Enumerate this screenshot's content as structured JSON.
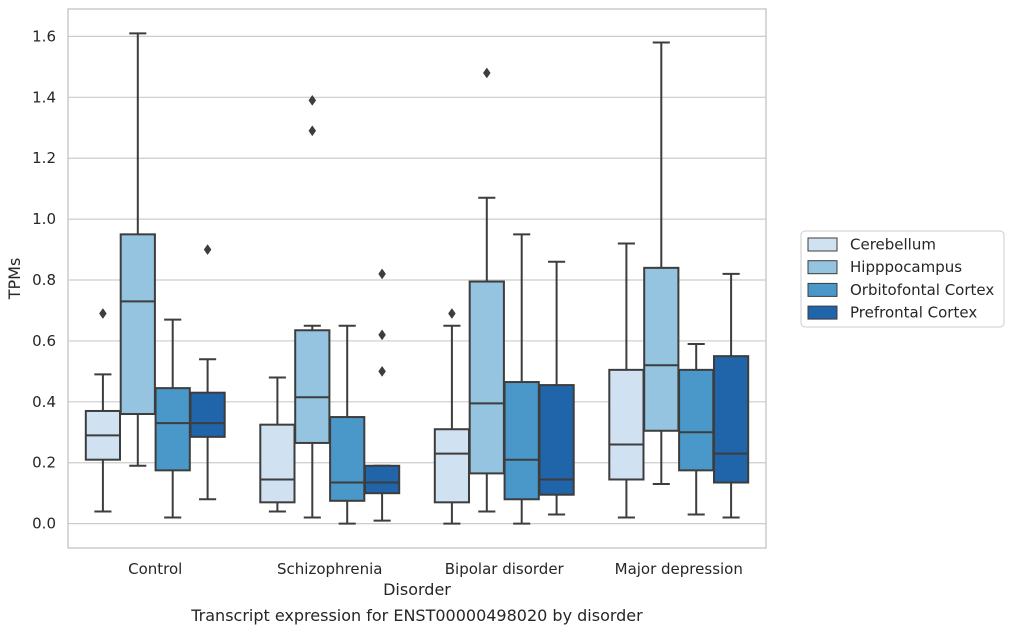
{
  "caption": "Transcript expression for ENST00000498020 by disorder",
  "chart_data": {
    "type": "boxplot",
    "xlabel": "Disorder",
    "ylabel": "TPMs",
    "ylim": [
      -0.08,
      1.69
    ],
    "yticks": [
      "0.0",
      "0.2",
      "0.4",
      "0.6",
      "0.8",
      "1.0",
      "1.2",
      "1.4",
      "1.6"
    ],
    "grid": true,
    "legend_position": "right",
    "categories": [
      "Control",
      "Schizophrenia",
      "Bipolar disorder",
      "Major depression"
    ],
    "series": [
      {
        "name": "Cerebellum",
        "color": "#d0e1f2",
        "boxes": [
          {
            "whislo": 0.04,
            "q1": 0.21,
            "med": 0.29,
            "q3": 0.37,
            "whishi": 0.49,
            "fliers": [
              0.69
            ]
          },
          {
            "whislo": 0.04,
            "q1": 0.07,
            "med": 0.145,
            "q3": 0.325,
            "whishi": 0.48,
            "fliers": []
          },
          {
            "whislo": 0.0,
            "q1": 0.07,
            "med": 0.23,
            "q3": 0.31,
            "whishi": 0.65,
            "fliers": [
              0.69
            ]
          },
          {
            "whislo": 0.02,
            "q1": 0.145,
            "med": 0.26,
            "q3": 0.505,
            "whishi": 0.92,
            "fliers": []
          }
        ]
      },
      {
        "name": "Hipppocampus",
        "color": "#94c4df",
        "boxes": [
          {
            "whislo": 0.19,
            "q1": 0.36,
            "med": 0.73,
            "q3": 0.95,
            "whishi": 1.61,
            "fliers": []
          },
          {
            "whislo": 0.02,
            "q1": 0.265,
            "med": 0.415,
            "q3": 0.635,
            "whishi": 0.65,
            "fliers": [
              1.29,
              1.39
            ]
          },
          {
            "whislo": 0.04,
            "q1": 0.165,
            "med": 0.395,
            "q3": 0.795,
            "whishi": 1.07,
            "fliers": [
              1.48
            ]
          },
          {
            "whislo": 0.13,
            "q1": 0.305,
            "med": 0.52,
            "q3": 0.84,
            "whishi": 1.58,
            "fliers": []
          }
        ]
      },
      {
        "name": "Orbitofontal Cortex",
        "color": "#4a98c9",
        "boxes": [
          {
            "whislo": 0.02,
            "q1": 0.175,
            "med": 0.33,
            "q3": 0.445,
            "whishi": 0.67,
            "fliers": []
          },
          {
            "whislo": 0.0,
            "q1": 0.075,
            "med": 0.135,
            "q3": 0.35,
            "whishi": 0.65,
            "fliers": []
          },
          {
            "whislo": 0.0,
            "q1": 0.08,
            "med": 0.21,
            "q3": 0.465,
            "whishi": 0.95,
            "fliers": []
          },
          {
            "whislo": 0.03,
            "q1": 0.175,
            "med": 0.3,
            "q3": 0.505,
            "whishi": 0.59,
            "fliers": []
          }
        ]
      },
      {
        "name": "Prefrontal Cortex",
        "color": "#2064aa",
        "boxes": [
          {
            "whislo": 0.08,
            "q1": 0.285,
            "med": 0.33,
            "q3": 0.43,
            "whishi": 0.54,
            "fliers": [
              0.9
            ]
          },
          {
            "whislo": 0.01,
            "q1": 0.1,
            "med": 0.135,
            "q3": 0.19,
            "whishi": 0.19,
            "fliers": [
              0.5,
              0.62,
              0.82
            ]
          },
          {
            "whislo": 0.03,
            "q1": 0.095,
            "med": 0.145,
            "q3": 0.455,
            "whishi": 0.86,
            "fliers": []
          },
          {
            "whislo": 0.02,
            "q1": 0.135,
            "med": 0.23,
            "q3": 0.55,
            "whishi": 0.82,
            "fliers": []
          }
        ]
      }
    ]
  }
}
